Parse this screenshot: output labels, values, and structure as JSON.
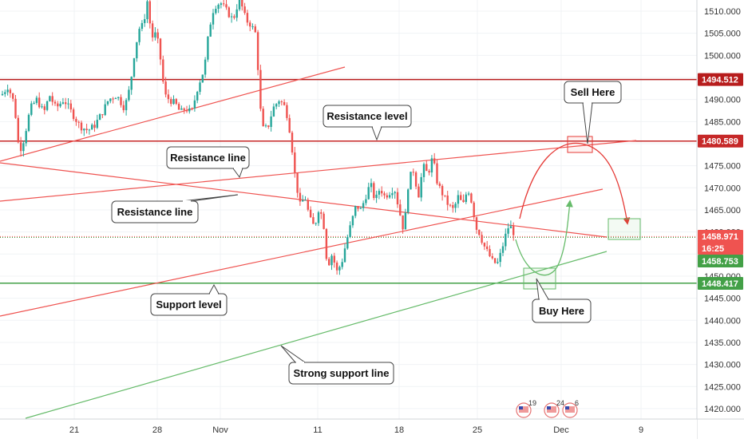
{
  "chart_data": {
    "type": "candlestick",
    "y_axis": {
      "ticks": [
        1510.0,
        1505.0,
        1500.0,
        1495.0,
        1490.0,
        1485.0,
        1480.0,
        1475.0,
        1470.0,
        1465.0,
        1460.0,
        1455.0,
        1450.0,
        1445.0,
        1440.0,
        1435.0,
        1430.0,
        1425.0,
        1420.0
      ],
      "tick_labels": [
        "1510.000",
        "1505.000",
        "1500.000",
        "1495.000",
        "1490.000",
        "1485.000",
        "1480.000",
        "1475.000",
        "1470.000",
        "1465.000",
        "1460.000",
        "1455.000",
        "1450.000",
        "1445.000",
        "1440.000",
        "1435.000",
        "1430.000",
        "1425.000",
        "1420.000"
      ],
      "range": [
        1418.5,
        1511.5
      ]
    },
    "x_axis": {
      "labels": [
        "21",
        "28",
        "Nov",
        "11",
        "18",
        "25",
        "Dec",
        "9"
      ]
    },
    "price_tags": [
      {
        "label": "1494.512",
        "value": 1494.512,
        "color": "#b71c1c"
      },
      {
        "label": "1480.589",
        "value": 1480.589,
        "color": "#c62828"
      },
      {
        "label": "1458.971",
        "value": 1458.971,
        "color": "#ef5350"
      },
      {
        "label": "16:25",
        "value": 1456.9,
        "color": "#ef5350"
      },
      {
        "label": "1458.753",
        "value": 1458.753,
        "color": "#43a047"
      },
      {
        "label": "1448.417",
        "value": 1448.417,
        "color": "#43a047"
      }
    ],
    "horizontal_levels": [
      {
        "value": 1494.512,
        "color": "#b71c1c"
      },
      {
        "value": 1480.589,
        "color": "#c62828"
      },
      {
        "value": 1458.971,
        "color": "#ef5350",
        "dotted": true
      },
      {
        "value": 1458.753,
        "color": "#43a047",
        "dotted": true
      },
      {
        "value": 1448.417,
        "color": "#43a047"
      }
    ],
    "annotations": [
      {
        "text": "Sell Here"
      },
      {
        "text": "Resistance level"
      },
      {
        "text": "Resistance line"
      },
      {
        "text": "Resistance line"
      },
      {
        "text": "Support level"
      },
      {
        "text": "Buy Here"
      },
      {
        "text": "Strong support line"
      }
    ],
    "events": [
      {
        "badge": "19"
      },
      {
        "badge": "24"
      },
      {
        "badge": "6"
      }
    ],
    "colors": {
      "up": "#26a69a",
      "down": "#ef5350",
      "resistance": "#ef5350",
      "support": "#66bb6a"
    }
  }
}
